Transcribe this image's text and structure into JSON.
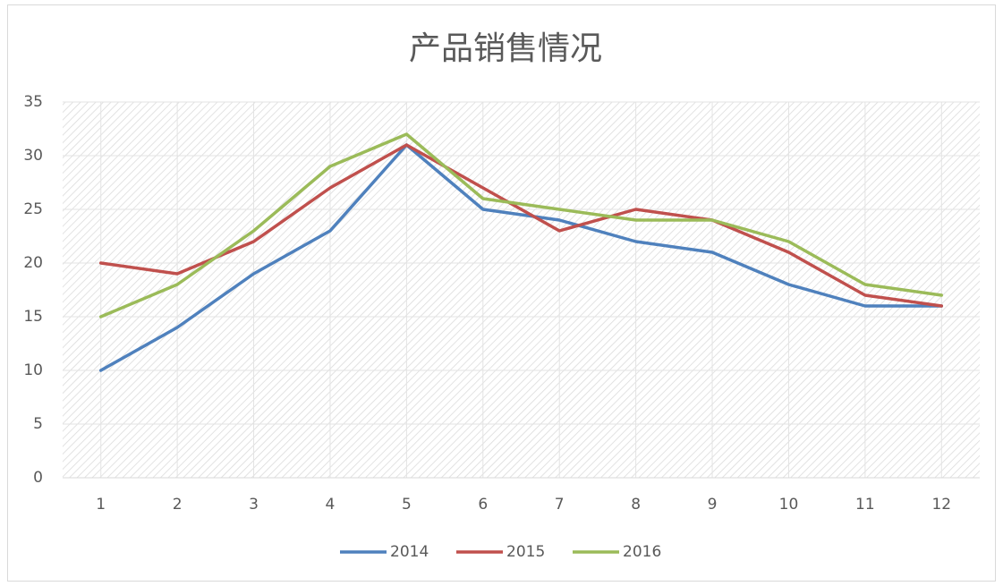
{
  "chart_data": {
    "type": "line",
    "title": "产品销售情况",
    "categories": [
      "1",
      "2",
      "3",
      "4",
      "5",
      "6",
      "7",
      "8",
      "9",
      "10",
      "11",
      "12"
    ],
    "series": [
      {
        "name": "2014",
        "color": "#4f81bd",
        "values": [
          10,
          14,
          19,
          23,
          31,
          25,
          24,
          22,
          21,
          18,
          16,
          16
        ]
      },
      {
        "name": "2015",
        "color": "#c0504d",
        "values": [
          20,
          19,
          22,
          27,
          31,
          27,
          23,
          25,
          24,
          21,
          17,
          16
        ]
      },
      {
        "name": "2016",
        "color": "#9bbb59",
        "values": [
          15,
          18,
          23,
          29,
          32,
          26,
          25,
          24,
          24,
          22,
          18,
          17
        ]
      }
    ],
    "ylim": [
      0,
      35
    ],
    "yticks": [
      0,
      5,
      10,
      15,
      20,
      25,
      30,
      35
    ],
    "grid": true,
    "xgrid": true,
    "legend": "bottom"
  }
}
